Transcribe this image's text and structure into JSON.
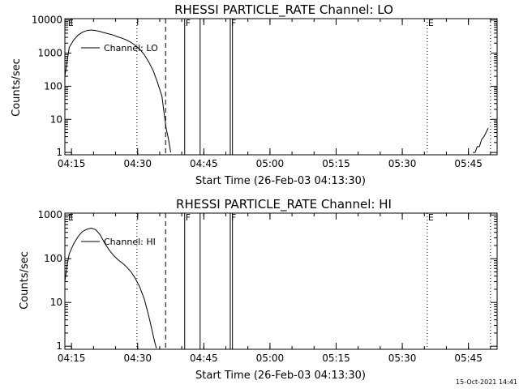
{
  "footer": {
    "timestamp": "15-Oct-2021 14:41"
  },
  "line_color": "#000000",
  "background": "#ffffff",
  "chart_data": [
    {
      "type": "line",
      "title": "RHESSI PARTICLE_RATE Channel: LO",
      "xlabel": "Start Time (26-Feb-03 04:13:30)",
      "ylabel": "Counts/sec",
      "yscale": "log",
      "ylim": [
        0.85,
        11000
      ],
      "xlim": [
        "04:13:30",
        "05:51:30"
      ],
      "x_ticks": [
        "04:15",
        "04:30",
        "04:45",
        "05:00",
        "05:15",
        "05:30",
        "05:45"
      ],
      "y_ticks": [
        "1",
        "10",
        "100",
        "1000",
        "10000"
      ],
      "legend": {
        "label": "Channel: LO",
        "position": "top-left"
      },
      "series": [
        {
          "name": "Channel: LO",
          "segments": [
            {
              "x": [
                "04:13:30",
                "04:14:30",
                "04:15:30",
                "04:16:30",
                "04:17:30",
                "04:18:30",
                "04:19:30",
                "04:20:30",
                "04:21:30",
                "04:22:30",
                "04:23:30",
                "04:24:30",
                "04:25:30",
                "04:26:30",
                "04:27:30",
                "04:28:30",
                "04:29:30",
                "04:30:30",
                "04:31:30",
                "04:32:30",
                "04:33:30",
                "04:34:30",
                "04:35:30",
                "04:36:00",
                "04:36:30",
                "04:37:00",
                "04:37:30"
              ],
              "y": [
                200,
                1500,
                2500,
                3500,
                4300,
                4800,
                5000,
                4800,
                4500,
                4100,
                3800,
                3500,
                3100,
                2800,
                2500,
                2100,
                1700,
                1300,
                900,
                550,
                300,
                130,
                50,
                15,
                5,
                2.5,
                1
              ]
            },
            {
              "x": [
                "05:46:00",
                "05:46:30",
                "05:47:00",
                "05:47:30",
                "05:48:00",
                "05:48:30",
                "05:49:00",
                "05:49:30"
              ],
              "y": [
                1,
                1,
                1.5,
                1.5,
                2.5,
                3,
                4,
                5.5
              ]
            }
          ]
        }
      ],
      "vlines": [
        {
          "x": "04:29:50",
          "style": "dotted"
        },
        {
          "x": "04:36:20",
          "style": "dashed"
        },
        {
          "x": "04:40:40",
          "style": "solid"
        },
        {
          "x": "04:44:10",
          "style": "solid"
        },
        {
          "x": "04:51:00",
          "style": "solid"
        },
        {
          "x": "04:51:30",
          "style": "solid"
        },
        {
          "x": "05:35:40",
          "style": "dotted"
        },
        {
          "x": "05:50:00",
          "style": "dotted"
        }
      ],
      "flags": [
        {
          "x": "04:14:00",
          "label": "E"
        },
        {
          "x": "04:40:40",
          "label": "F"
        },
        {
          "x": "04:51:00",
          "label": "F"
        },
        {
          "x": "05:35:40",
          "label": "E"
        }
      ]
    },
    {
      "type": "line",
      "title": "RHESSI PARTICLE_RATE Channel: HI",
      "xlabel": "Start Time (26-Feb-03 04:13:30)",
      "ylabel": "Counts/sec",
      "yscale": "log",
      "ylim": [
        0.85,
        1100
      ],
      "xlim": [
        "04:13:30",
        "05:51:30"
      ],
      "x_ticks": [
        "04:15",
        "04:30",
        "04:45",
        "05:00",
        "05:15",
        "05:30",
        "05:45"
      ],
      "y_ticks": [
        "1",
        "10",
        "100",
        "1000"
      ],
      "legend": {
        "label": "Channel: HI",
        "position": "top-left"
      },
      "series": [
        {
          "name": "Channel: HI",
          "segments": [
            {
              "x": [
                "04:13:30",
                "04:14:00",
                "04:14:30",
                "04:15:30",
                "04:16:30",
                "04:17:30",
                "04:18:30",
                "04:19:30",
                "04:20:30",
                "04:21:30",
                "04:22:30",
                "04:23:30",
                "04:24:30",
                "04:25:30",
                "04:26:30",
                "04:27:30",
                "04:28:30",
                "04:29:30",
                "04:30:30",
                "04:31:30",
                "04:32:30",
                "04:33:00",
                "04:33:30",
                "04:34:00",
                "04:34:15"
              ],
              "y": [
                30,
                70,
                130,
                220,
                320,
                420,
                470,
                500,
                460,
                350,
                230,
                160,
                120,
                95,
                80,
                65,
                50,
                35,
                22,
                12,
                5,
                3,
                1.8,
                1.1,
                0.9
              ]
            }
          ]
        }
      ],
      "vlines": [
        {
          "x": "04:29:50",
          "style": "dotted"
        },
        {
          "x": "04:36:20",
          "style": "dashed"
        },
        {
          "x": "04:40:40",
          "style": "solid"
        },
        {
          "x": "04:44:10",
          "style": "solid"
        },
        {
          "x": "04:51:00",
          "style": "solid"
        },
        {
          "x": "04:51:30",
          "style": "solid"
        },
        {
          "x": "05:35:40",
          "style": "dotted"
        },
        {
          "x": "05:50:00",
          "style": "dotted"
        }
      ],
      "flags": [
        {
          "x": "04:14:00",
          "label": "E"
        },
        {
          "x": "04:40:40",
          "label": "F"
        },
        {
          "x": "04:51:00",
          "label": "F"
        },
        {
          "x": "05:35:40",
          "label": "E"
        }
      ]
    }
  ]
}
